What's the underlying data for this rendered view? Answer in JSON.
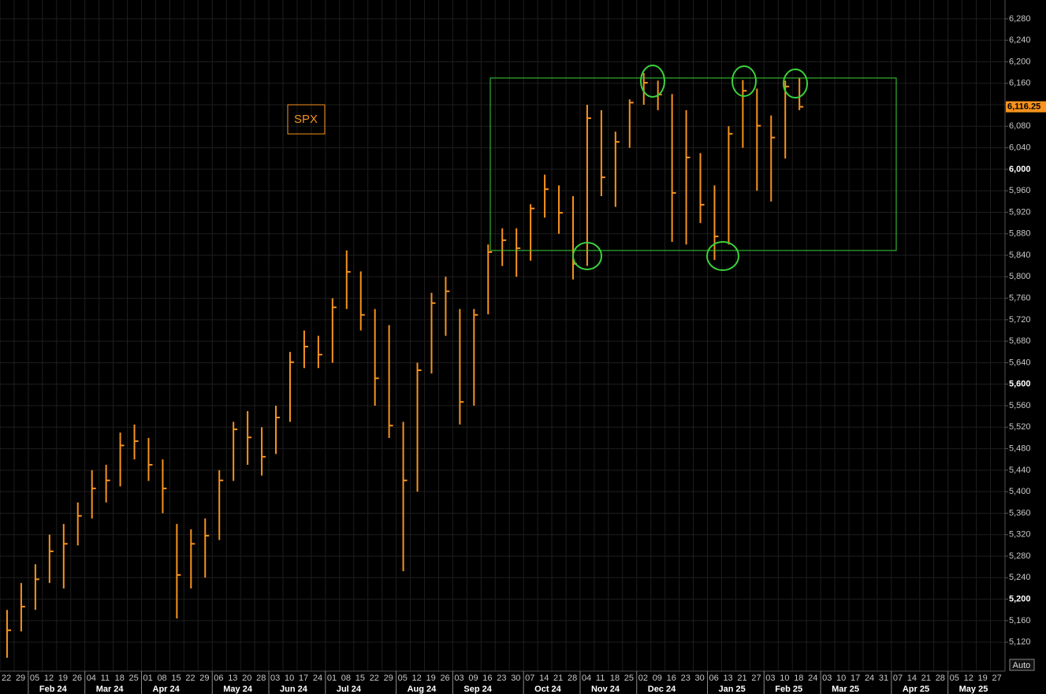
{
  "chart_data": {
    "type": "ohlc",
    "label": "SPX",
    "grid": true,
    "week_labels": [
      "22",
      "29",
      "05",
      "12",
      "19",
      "26",
      "04",
      "11",
      "18",
      "25",
      "01",
      "08",
      "15",
      "22",
      "29",
      "06",
      "13",
      "20",
      "28",
      "03",
      "10",
      "17",
      "24",
      "01",
      "08",
      "15",
      "22",
      "29",
      "05",
      "12",
      "19",
      "26",
      "03",
      "09",
      "16",
      "23",
      "30",
      "07",
      "14",
      "21",
      "28",
      "04",
      "11",
      "18",
      "25",
      "02",
      "09",
      "16",
      "23",
      "30",
      "06",
      "13",
      "21",
      "27",
      "03",
      "10",
      "18",
      "24",
      "03",
      "10",
      "17",
      "24",
      "31",
      "07",
      "14",
      "21",
      "28",
      "05",
      "12",
      "19",
      "27"
    ],
    "month_labels": [
      "Feb 24",
      "Mar 24",
      "Apr 24",
      "May 24",
      "Jun 24",
      "Jul 24",
      "Aug 24",
      "Sep 24",
      "Oct 24",
      "Nov 24",
      "Dec 24",
      "Jan 25",
      "Feb 25",
      "Mar 25",
      "Apr 25",
      "May 25"
    ],
    "series": {
      "color": "#f7931e",
      "high": [
        5180,
        5230,
        5265,
        5320,
        5340,
        5380,
        5440,
        5450,
        5510,
        5525,
        5500,
        5460,
        5340,
        5330,
        5350,
        5440,
        5530,
        5550,
        5520,
        5560,
        5660,
        5700,
        5690,
        5760,
        5849,
        5810,
        5740,
        5710,
        5530,
        5640,
        5770,
        5800,
        5740,
        5740,
        5860,
        5890,
        5890,
        5935,
        5990,
        5970,
        5950,
        6120,
        6110,
        6070,
        6130,
        6179,
        6165,
        6140,
        6110,
        6030,
        5970,
        6080,
        6166,
        6150,
        6100,
        6165,
        6170,
        null,
        null,
        null,
        null,
        null,
        null,
        null,
        null,
        null,
        null,
        null,
        null,
        null,
        null
      ],
      "low": [
        5091,
        5140,
        5180,
        5230,
        5220,
        5300,
        5350,
        5380,
        5410,
        5460,
        5420,
        5360,
        5164,
        5220,
        5240,
        5310,
        5420,
        5450,
        5430,
        5470,
        5530,
        5630,
        5630,
        5640,
        5740,
        5700,
        5560,
        5500,
        5252,
        5400,
        5620,
        5690,
        5525,
        5560,
        5730,
        5820,
        5800,
        5830,
        5910,
        5880,
        5795,
        5820,
        5950,
        5930,
        6040,
        6120,
        6110,
        5865,
        5860,
        5900,
        5831,
        5860,
        6040,
        5960,
        5940,
        6020,
        6110,
        null,
        null,
        null,
        null,
        null,
        null,
        null,
        null,
        null,
        null,
        null,
        null,
        null,
        null
      ],
      "close": [
        5142,
        5186,
        5237,
        5289,
        5303,
        5355,
        5406,
        5421,
        5486,
        5494,
        5450,
        5406,
        5245,
        5303,
        5318,
        5421,
        5516,
        5501,
        5465,
        5538,
        5641,
        5670,
        5655,
        5743,
        5809,
        5729,
        5611,
        5523,
        5421,
        5626,
        5751,
        5773,
        5567,
        5729,
        5846,
        5868,
        5853,
        5927,
        5963,
        5919,
        5824,
        6095,
        5985,
        6051,
        6124,
        6161,
        6139,
        5956,
        6022,
        5934,
        5875,
        6066,
        6146,
        6081,
        6059,
        6154,
        6116.25,
        null,
        null,
        null,
        null,
        null,
        null,
        null,
        null,
        null,
        null,
        null,
        null,
        null,
        null
      ]
    },
    "ylim": [
      5066,
      6315
    ],
    "yticks": [
      {
        "value": 5120,
        "label": "5,120"
      },
      {
        "value": 5160,
        "label": "5,160"
      },
      {
        "value": 5200,
        "label": "5,200"
      },
      {
        "value": 5240,
        "label": "5,240"
      },
      {
        "value": 5280,
        "label": "5,280"
      },
      {
        "value": 5320,
        "label": "5,320"
      },
      {
        "value": 5360,
        "label": "5,360"
      },
      {
        "value": 5400,
        "label": "5,400"
      },
      {
        "value": 5440,
        "label": "5,440"
      },
      {
        "value": 5480,
        "label": "5,480"
      },
      {
        "value": 5520,
        "label": "5,520"
      },
      {
        "value": 5560,
        "label": "5,560"
      },
      {
        "value": 5600,
        "label": "5,600"
      },
      {
        "value": 5640,
        "label": "5,640"
      },
      {
        "value": 5680,
        "label": "5,680"
      },
      {
        "value": 5720,
        "label": "5,720"
      },
      {
        "value": 5760,
        "label": "5,760"
      },
      {
        "value": 5800,
        "label": "5,800"
      },
      {
        "value": 5840,
        "label": "5,840"
      },
      {
        "value": 5880,
        "label": "5,880"
      },
      {
        "value": 5920,
        "label": "5,920"
      },
      {
        "value": 5960,
        "label": "5,960"
      },
      {
        "value": 6000,
        "label": "6,000"
      },
      {
        "value": 6040,
        "label": "6,040"
      },
      {
        "value": 6080,
        "label": "6,080"
      },
      {
        "value": 6120,
        "label": "6,120"
      },
      {
        "value": 6160,
        "label": "6,160"
      },
      {
        "value": 6200,
        "label": "6,200"
      },
      {
        "value": 6240,
        "label": "6,240"
      },
      {
        "value": 6280,
        "label": "6,280"
      }
    ],
    "last_price": {
      "value": 6116.25,
      "label": "6,116.25"
    },
    "auto_button": "Auto"
  }
}
